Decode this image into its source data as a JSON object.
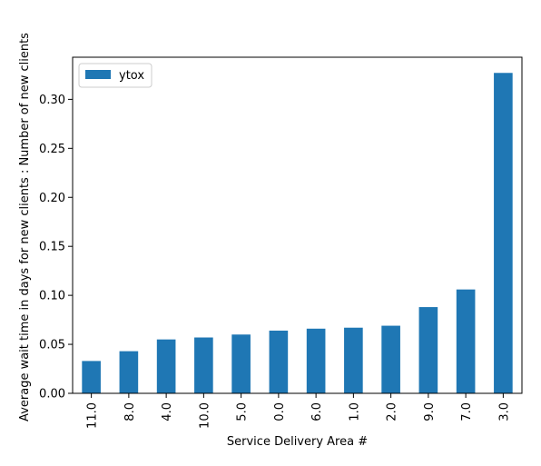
{
  "chart_data": {
    "type": "bar",
    "categories": [
      "11.0",
      "8.0",
      "4.0",
      "10.0",
      "5.0",
      "0.0",
      "6.0",
      "1.0",
      "2.0",
      "9.0",
      "7.0",
      "3.0"
    ],
    "series": [
      {
        "name": "ytox",
        "color": "#1f77b4",
        "values": [
          0.033,
          0.043,
          0.055,
          0.057,
          0.06,
          0.064,
          0.066,
          0.067,
          0.069,
          0.088,
          0.106,
          0.327
        ]
      }
    ],
    "title": "",
    "xlabel": "Service Delivery Area #",
    "ylabel": "Average wait time in days for new clients : Number of new clients",
    "ylim": [
      0,
      0.343
    ],
    "yticks": [
      0.0,
      0.05,
      0.1,
      0.15,
      0.2,
      0.25,
      0.3
    ],
    "ytick_labels": [
      "0.00",
      "0.05",
      "0.10",
      "0.15",
      "0.20",
      "0.25",
      "0.30"
    ],
    "grid": false,
    "legend": {
      "placement": "top-left",
      "entries": [
        "ytox"
      ]
    }
  }
}
